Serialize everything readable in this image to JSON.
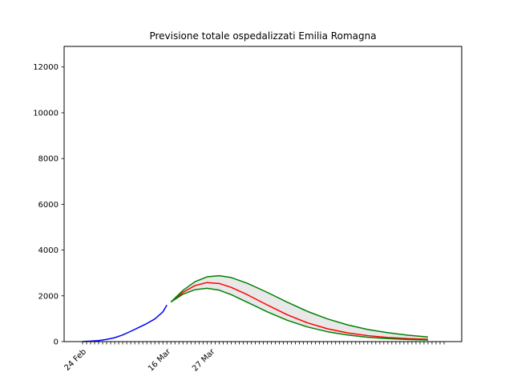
{
  "chart_data": {
    "type": "line",
    "title": "Previsione totale ospedalizzati Emilia Romagna",
    "xlabel": "",
    "ylabel": "",
    "x_start": "2020-02-24",
    "x_end": "2020-05-24",
    "xticks": [
      {
        "date": "2020-02-24",
        "label": "24 Feb"
      },
      {
        "date": "2020-03-16",
        "label": "16 Mar"
      },
      {
        "date": "2020-03-27",
        "label": "27 Mar"
      }
    ],
    "yticks": [
      0,
      2000,
      4000,
      6000,
      8000,
      10000,
      12000
    ],
    "ylim": [
      0,
      12900
    ],
    "grid": false,
    "legend": "none",
    "series": [
      {
        "color": "#0000ff",
        "style": "observed",
        "points": [
          [
            "2020-02-24",
            5
          ],
          [
            "2020-02-26",
            20
          ],
          [
            "2020-02-28",
            45
          ],
          [
            "2020-03-01",
            95
          ],
          [
            "2020-03-03",
            170
          ],
          [
            "2020-03-05",
            290
          ],
          [
            "2020-03-07",
            450
          ],
          [
            "2020-03-09",
            620
          ],
          [
            "2020-03-11",
            790
          ],
          [
            "2020-03-13",
            990
          ],
          [
            "2020-03-15",
            1300
          ],
          [
            "2020-03-16",
            1600
          ]
        ]
      },
      {
        "color": "#ff0000",
        "style": "forecast",
        "points": [
          [
            "2020-03-17",
            1730
          ],
          [
            "2020-03-20",
            2150
          ],
          [
            "2020-03-23",
            2450
          ],
          [
            "2020-03-26",
            2580
          ],
          [
            "2020-03-29",
            2540
          ],
          [
            "2020-04-01",
            2370
          ],
          [
            "2020-04-05",
            2050
          ],
          [
            "2020-04-10",
            1600
          ],
          [
            "2020-04-15",
            1170
          ],
          [
            "2020-04-20",
            820
          ],
          [
            "2020-04-25",
            560
          ],
          [
            "2020-04-30",
            380
          ],
          [
            "2020-05-05",
            260
          ],
          [
            "2020-05-10",
            180
          ],
          [
            "2020-05-15",
            130
          ],
          [
            "2020-05-20",
            100
          ]
        ]
      },
      {
        "color": "#008000",
        "style": "upper",
        "points": [
          [
            "2020-03-17",
            1730
          ],
          [
            "2020-03-20",
            2240
          ],
          [
            "2020-03-23",
            2620
          ],
          [
            "2020-03-26",
            2830
          ],
          [
            "2020-03-29",
            2880
          ],
          [
            "2020-04-01",
            2800
          ],
          [
            "2020-04-05",
            2550
          ],
          [
            "2020-04-10",
            2150
          ],
          [
            "2020-04-15",
            1720
          ],
          [
            "2020-04-20",
            1320
          ],
          [
            "2020-04-25",
            990
          ],
          [
            "2020-04-30",
            730
          ],
          [
            "2020-05-05",
            530
          ],
          [
            "2020-05-10",
            390
          ],
          [
            "2020-05-15",
            280
          ],
          [
            "2020-05-20",
            200
          ]
        ]
      },
      {
        "color": "#008000",
        "style": "lower",
        "points": [
          [
            "2020-03-17",
            1730
          ],
          [
            "2020-03-20",
            2070
          ],
          [
            "2020-03-23",
            2270
          ],
          [
            "2020-03-26",
            2330
          ],
          [
            "2020-03-29",
            2250
          ],
          [
            "2020-04-01",
            2050
          ],
          [
            "2020-04-05",
            1720
          ],
          [
            "2020-04-10",
            1300
          ],
          [
            "2020-04-15",
            930
          ],
          [
            "2020-04-20",
            640
          ],
          [
            "2020-04-25",
            430
          ],
          [
            "2020-04-30",
            290
          ],
          [
            "2020-05-05",
            190
          ],
          [
            "2020-05-10",
            130
          ],
          [
            "2020-05-15",
            90
          ],
          [
            "2020-05-20",
            70
          ]
        ]
      }
    ],
    "band_fill": "#e8e8e8"
  }
}
